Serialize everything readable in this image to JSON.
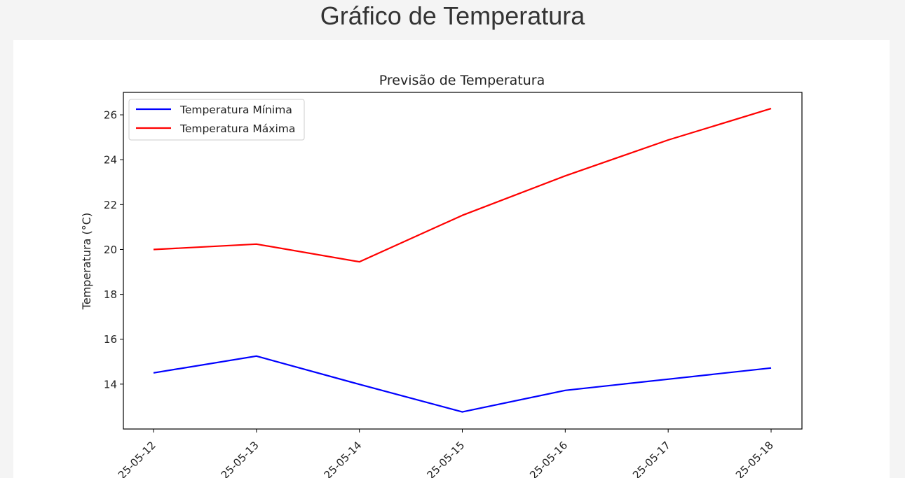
{
  "page": {
    "heading": "Gráfico de Temperatura"
  },
  "chart_data": {
    "type": "line",
    "title": "Previsão de Temperatura",
    "xlabel": "",
    "ylabel": "Temperatura (°C)",
    "x": [
      "2025-05-12",
      "2025-05-13",
      "2025-05-14",
      "2025-05-15",
      "2025-05-16",
      "2025-05-17",
      "2025-05-18"
    ],
    "tick_labels": [
      "25-05-12",
      "25-05-13",
      "25-05-14",
      "25-05-15",
      "25-05-16",
      "25-05-17",
      "25-05-18"
    ],
    "y_ticks": [
      14,
      16,
      18,
      20,
      22,
      24,
      26
    ],
    "ylim": [
      12.0,
      27.0
    ],
    "grid": false,
    "legend_position": "top-left",
    "series": [
      {
        "name": "Temperatura Mínima",
        "color": "#0000ff",
        "values": [
          14.5,
          15.25,
          13.99,
          12.76,
          13.72,
          14.22,
          14.72
        ]
      },
      {
        "name": "Temperatura Máxima",
        "color": "#ff0000",
        "values": [
          20.0,
          20.24,
          19.45,
          21.52,
          23.28,
          24.88,
          26.28
        ]
      }
    ]
  }
}
